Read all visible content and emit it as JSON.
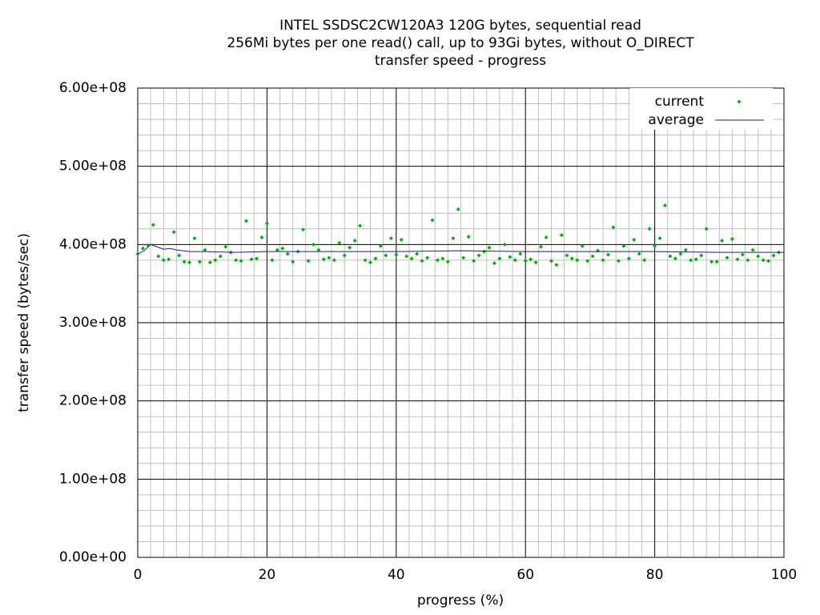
{
  "chart_data": {
    "type": "scatter",
    "title": [
      "INTEL SSDSC2CW120A3 120G bytes, sequential read",
      "256Mi bytes per one read() call, up to 93Gi bytes, without O_DIRECT",
      "transfer speed - progress"
    ],
    "x_label": "progress (%)",
    "y_label": "transfer speed (bytes/sec)",
    "xlim": [
      0,
      100
    ],
    "xticks": [
      0,
      20,
      40,
      60,
      80,
      100
    ],
    "ylim": [
      0,
      600000000.0
    ],
    "yticks": [
      {
        "value": 0,
        "label": "0.00e+00"
      },
      {
        "value": 100000000.0,
        "label": "1.00e+08"
      },
      {
        "value": 200000000.0,
        "label": "2.00e+08"
      },
      {
        "value": 300000000.0,
        "label": "3.00e+08"
      },
      {
        "value": 400000000.0,
        "label": "4.00e+08"
      },
      {
        "value": 500000000.0,
        "label": "5.00e+08"
      },
      {
        "value": 600000000.0,
        "label": "6.00e+08"
      }
    ],
    "grid": true,
    "minor_grid": {
      "x": 10,
      "y": 5
    },
    "legend": "top-right",
    "series": [
      {
        "name": "current",
        "color": "#00b000",
        "style": "points",
        "x": [
          0,
          0.8,
          1.6,
          2.4,
          3.2,
          4,
          4.8,
          5.6,
          6.4,
          7.2,
          8,
          8.8,
          9.6,
          10.4,
          11.2,
          12,
          12.8,
          13.6,
          14.4,
          15.2,
          16,
          16.8,
          17.6,
          18.4,
          19.2,
          20,
          20.8,
          21.6,
          22.4,
          23.2,
          24,
          24.8,
          25.6,
          26.4,
          27.2,
          28,
          28.8,
          29.6,
          30.4,
          31.2,
          32,
          32.8,
          33.6,
          34.4,
          35.2,
          36,
          36.8,
          37.6,
          38.4,
          39.2,
          40,
          40.8,
          41.6,
          42.4,
          43.2,
          44,
          44.8,
          45.6,
          46.4,
          47.2,
          48,
          48.8,
          49.6,
          50.4,
          51.2,
          52,
          52.8,
          53.6,
          54.4,
          55.2,
          56,
          56.8,
          57.6,
          58.4,
          59.2,
          60,
          60.8,
          61.6,
          62.4,
          63.2,
          64,
          64.8,
          65.6,
          66.4,
          67.2,
          68,
          68.8,
          69.6,
          70.4,
          71.2,
          72,
          72.8,
          73.6,
          74.4,
          75.2,
          76,
          76.8,
          77.6,
          78.4,
          79.2,
          80,
          80.8,
          81.6,
          82.4,
          83.2,
          84,
          84.8,
          85.6,
          86.4,
          87.2,
          88,
          88.8,
          89.6,
          90.4,
          91.2,
          92,
          92.8,
          93.6,
          94.4,
          95.2,
          96,
          96.8,
          97.6,
          98.4,
          99.2
        ],
        "values": [
          388000000.0,
          395000000.0,
          399000000.0,
          425000000.0,
          385000000.0,
          380000000.0,
          381000000.0,
          416000000.0,
          386000000.0,
          378000000.0,
          377000000.0,
          408000000.0,
          378000000.0,
          393000000.0,
          377000000.0,
          380000000.0,
          385000000.0,
          397000000.0,
          390000000.0,
          380000000.0,
          379000000.0,
          430000000.0,
          381000000.0,
          382000000.0,
          409000000.0,
          427000000.0,
          380000000.0,
          393000000.0,
          395000000.0,
          388000000.0,
          378000000.0,
          391000000.0,
          419000000.0,
          379000000.0,
          400000000.0,
          393000000.0,
          381000000.0,
          383000000.0,
          380000000.0,
          402000000.0,
          386000000.0,
          396000000.0,
          405000000.0,
          424000000.0,
          380000000.0,
          377000000.0,
          382000000.0,
          398000000.0,
          386000000.0,
          408000000.0,
          387000000.0,
          406000000.0,
          385000000.0,
          382000000.0,
          388000000.0,
          379000000.0,
          383000000.0,
          431000000.0,
          380000000.0,
          382000000.0,
          378000000.0,
          408000000.0,
          445000000.0,
          383000000.0,
          410000000.0,
          379000000.0,
          386000000.0,
          391000000.0,
          396000000.0,
          376000000.0,
          382000000.0,
          400000000.0,
          384000000.0,
          380000000.0,
          388000000.0,
          379000000.0,
          381000000.0,
          377000000.0,
          397000000.0,
          409000000.0,
          379000000.0,
          374000000.0,
          412000000.0,
          386000000.0,
          382000000.0,
          380000000.0,
          398000000.0,
          379000000.0,
          385000000.0,
          392000000.0,
          380000000.0,
          387000000.0,
          422000000.0,
          379000000.0,
          398000000.0,
          382000000.0,
          406000000.0,
          388000000.0,
          380000000.0,
          420000000.0,
          398000000.0,
          408000000.0,
          450000000.0,
          385000000.0,
          382000000.0,
          388000000.0,
          393000000.0,
          380000000.0,
          381000000.0,
          386000000.0,
          420000000.0,
          378000000.0,
          378000000.0,
          405000000.0,
          383000000.0,
          407000000.0,
          381000000.0,
          387000000.0,
          380000000.0,
          393000000.0,
          385000000.0,
          380000000.0,
          379000000.0,
          386000000.0,
          390000000.0
        ]
      },
      {
        "name": "average",
        "color": "#1c1ca8",
        "style": "line",
        "x": [
          0,
          1,
          2,
          3,
          4,
          5,
          6,
          8,
          10,
          15,
          20,
          30,
          40,
          50,
          60,
          70,
          80,
          90,
          100
        ],
        "values": [
          388000000.0,
          392000000.0,
          400000000.0,
          397000000.0,
          394000000.0,
          395000000.0,
          393000000.0,
          391000000.0,
          391000000.0,
          390000000.0,
          391000000.0,
          391000000.0,
          391000000.0,
          392000000.0,
          391000000.0,
          391000000.0,
          391000000.0,
          390000000.0,
          390000000.0
        ]
      }
    ]
  }
}
